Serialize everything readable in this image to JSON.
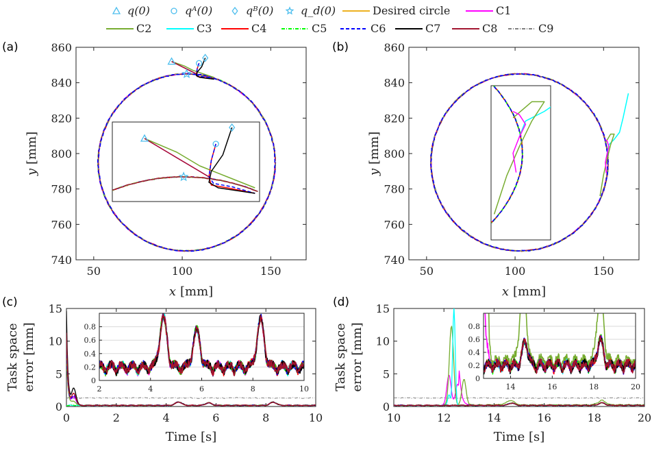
{
  "legend": {
    "items": [
      {
        "key": "q0",
        "label": "q(0)",
        "kind": "marker",
        "marker": "triangle",
        "color": "#4DBEEE"
      },
      {
        "key": "qA0",
        "label": "qᴬ(0)",
        "kind": "marker",
        "marker": "circle",
        "color": "#4DBEEE"
      },
      {
        "key": "qB0",
        "label": "qᴮ(0)",
        "kind": "marker",
        "marker": "diamond",
        "color": "#4DBEEE"
      },
      {
        "key": "qd0",
        "label": "q_d(0)",
        "kind": "marker",
        "marker": "star",
        "color": "#4DBEEE"
      },
      {
        "key": "desired",
        "label": "Desired circle",
        "kind": "line",
        "color": "#EDB120",
        "dash": "solid"
      },
      {
        "key": "C1",
        "label": "C1",
        "kind": "line",
        "color": "#FF00FF",
        "dash": "solid"
      },
      {
        "key": "C2",
        "label": "C2",
        "kind": "line",
        "color": "#77AC30",
        "dash": "solid"
      },
      {
        "key": "C3",
        "label": "C3",
        "kind": "line",
        "color": "#00FFFF",
        "dash": "solid"
      },
      {
        "key": "C4",
        "label": "C4",
        "kind": "line",
        "color": "#FF0000",
        "dash": "solid"
      },
      {
        "key": "C5",
        "label": "C5",
        "kind": "line",
        "color": "#00FF00",
        "dash": "dashdot"
      },
      {
        "key": "C6",
        "label": "C6",
        "kind": "line",
        "color": "#0000FF",
        "dash": "dashed"
      },
      {
        "key": "C7",
        "label": "C7",
        "kind": "line",
        "color": "#000000",
        "dash": "solid"
      },
      {
        "key": "C8",
        "label": "C8",
        "kind": "line",
        "color": "#A2142F",
        "dash": "solid"
      },
      {
        "key": "C9",
        "label": "C9",
        "kind": "line",
        "color": "#808080",
        "dash": "dashdot"
      }
    ]
  },
  "chart_data": [
    {
      "panel": "(a)",
      "type": "line",
      "xlabel": "x [mm]",
      "ylabel": "y [mm]",
      "xlim": [
        40,
        170
      ],
      "ylim": [
        740,
        860
      ],
      "xticks": [
        50,
        100,
        150
      ],
      "yticks": [
        740,
        760,
        780,
        800,
        820,
        840,
        860
      ],
      "desired_circle": {
        "center": [
          102.5,
          795
        ],
        "radius": 50
      },
      "markers": {
        "q0": [
          94,
          852
        ],
        "qA0": [
          109.5,
          851
        ],
        "qB0": [
          113,
          854
        ],
        "qd0": [
          102.5,
          845
        ]
      },
      "approach_paths": [
        {
          "series": "C1",
          "points": [
            [
              94,
              852
            ],
            [
              100,
              849
            ],
            [
              106,
              846
            ],
            [
              108,
              845
            ]
          ]
        },
        {
          "series": "C2",
          "points": [
            [
              94,
              852
            ],
            [
              101,
              849.5
            ],
            [
              106,
              847
            ],
            [
              112,
              845
            ],
            [
              118,
              843
            ]
          ]
        },
        {
          "series": "C8",
          "points": [
            [
              94,
              852
            ],
            [
              100,
              849
            ],
            [
              106,
              846
            ],
            [
              108,
              845
            ]
          ]
        },
        {
          "series": "C4",
          "points": [
            [
              109.5,
              851
            ],
            [
              108.5,
              848
            ],
            [
              108,
              845
            ],
            [
              108.5,
              843.5
            ],
            [
              112,
              843
            ],
            [
              118,
              842
            ]
          ]
        },
        {
          "series": "C6",
          "points": [
            [
              109.5,
              851
            ],
            [
              108.5,
              848
            ],
            [
              108,
              845
            ],
            [
              109,
              843.8
            ],
            [
              113,
              843.2
            ],
            [
              118,
              842
            ]
          ]
        },
        {
          "series": "C7",
          "points": [
            [
              113,
              854
            ],
            [
              111,
              849
            ],
            [
              108.5,
              846
            ],
            [
              108,
              844
            ],
            [
              110,
              843
            ],
            [
              114,
              842.5
            ],
            [
              118,
              842
            ]
          ]
        }
      ],
      "inset": {
        "xlim": [
          87,
          119
        ],
        "ylim": [
          840.5,
          855
        ],
        "xticks": [],
        "yticks": []
      }
    },
    {
      "panel": "(b)",
      "type": "line",
      "xlabel": "x [mm]",
      "ylabel": "y [mm]",
      "xlim": [
        40,
        170
      ],
      "ylim": [
        740,
        860
      ],
      "xticks": [
        50,
        100,
        150
      ],
      "yticks": [
        740,
        760,
        780,
        800,
        820,
        840,
        860
      ],
      "desired_circle": {
        "center": [
          102.5,
          795
        ],
        "radius": 50
      },
      "disturbance_paths": [
        {
          "series": "C3",
          "points": [
            [
              152,
              800
            ],
            [
              153,
              805
            ],
            [
              156,
              808
            ],
            [
              159,
              812
            ],
            [
              161,
              820
            ],
            [
              164,
              834
            ]
          ]
        },
        {
          "series": "C2",
          "points": [
            [
              148,
              776
            ],
            [
              150,
              788
            ],
            [
              152,
              797
            ],
            [
              154,
              805
            ],
            [
              156,
              811
            ],
            [
              154,
              811
            ],
            [
              151,
              806
            ]
          ]
        },
        {
          "series": "C1",
          "points": [
            [
              151.5,
              789
            ],
            [
              151,
              795
            ],
            [
              152,
              800
            ],
            [
              153,
              804
            ],
            [
              152,
              807
            ],
            [
              151,
              808
            ]
          ]
        }
      ],
      "inset": {
        "xlim": [
          147.5,
          157
        ],
        "ylim": [
          768,
          816
        ],
        "xticks": [],
        "yticks": []
      }
    },
    {
      "panel": "(c)",
      "type": "line",
      "xlabel": "Time [s]",
      "ylabel": "Task space error [mm]",
      "xlim": [
        0,
        10
      ],
      "ylim": [
        0,
        15
      ],
      "xticks": [
        0,
        2,
        4,
        6,
        8,
        10
      ],
      "yticks": [
        0,
        5,
        10,
        15
      ],
      "series_peaks": [
        {
          "name": "C7",
          "initial": 14.5,
          "bump_at": 0.3,
          "bump": 2.6
        },
        {
          "name": "C8",
          "initial": 11.2,
          "bump_at": 0.3,
          "bump": 1.8
        },
        {
          "name": "C4",
          "initial": 11.0,
          "bump_at": 0.3,
          "bump": 1.8
        },
        {
          "name": "C6",
          "initial": 9.5,
          "bump_at": 0.3,
          "bump": 1.5
        },
        {
          "name": "C1",
          "initial": 9.0,
          "bump_at": 0.3,
          "bump": 1.3
        },
        {
          "name": "C2",
          "initial": 8.0,
          "bump_at": 0.3,
          "bump": 0.6
        },
        {
          "name": "C9",
          "steady": 1.3
        }
      ],
      "steady_state_peaks": [
        {
          "t": 4.5,
          "value": 0.75
        },
        {
          "t": 5.7,
          "value": 0.55
        },
        {
          "t": 8.3,
          "value": 0.7
        }
      ],
      "inset": {
        "xlim": [
          2,
          10
        ],
        "ylim": [
          0,
          1
        ],
        "xticks": [
          2,
          4,
          6,
          8,
          10
        ],
        "yticks": [
          0,
          0.2,
          0.4,
          0.6,
          0.8
        ],
        "peaks": [
          {
            "t": 4.5,
            "value": 0.88,
            "series": "C2"
          },
          {
            "t": 5.8,
            "value": 0.68,
            "series": "C2"
          },
          {
            "t": 8.3,
            "value": 0.84,
            "series": "C2"
          }
        ]
      }
    },
    {
      "panel": "(d)",
      "type": "line",
      "xlabel": "Time [s]",
      "ylabel": "Task space error [mm]",
      "xlim": [
        10,
        20
      ],
      "ylim": [
        0,
        15
      ],
      "xticks": [
        10,
        12,
        14,
        16,
        18,
        20
      ],
      "yticks": [
        0,
        5,
        10,
        15
      ],
      "disturbance_peaks": [
        {
          "name": "C3",
          "t": 12.4,
          "value": 15.0
        },
        {
          "name": "C2",
          "t": 12.3,
          "value": 12.2
        },
        {
          "name": "C2",
          "t": 12.8,
          "value": 4.0
        },
        {
          "name": "C1",
          "t": 12.2,
          "value": 4.7
        },
        {
          "name": "C1",
          "t": 12.55,
          "value": 3.3
        },
        {
          "name": "C3",
          "t": 12.2,
          "value": 1.7
        },
        {
          "name": "C9",
          "steady": 1.3
        }
      ],
      "inset": {
        "xlim": [
          12.7,
          20
        ],
        "ylim": [
          0,
          1
        ],
        "xticks": [
          14,
          16,
          18,
          20
        ],
        "yticks": [
          0,
          0.2,
          0.4,
          0.6,
          0.8
        ],
        "peaks": [
          {
            "t": 14.6,
            "value": 0.95,
            "series": "C2"
          },
          {
            "t": 14.7,
            "value": 0.5,
            "series": "C6"
          },
          {
            "t": 18.3,
            "value": 0.9,
            "series": "C2"
          },
          {
            "t": 18.3,
            "value": 0.55,
            "series": "C6"
          }
        ]
      }
    }
  ],
  "panel_labels": [
    "(a)",
    "(b)",
    "(c)",
    "(d)"
  ],
  "axis_text": {
    "x_mm": "x",
    "mm_unit": "[mm]",
    "y_mm": "y",
    "time": "Time [s]",
    "err_line1": "Task space",
    "err_line2": "error [mm]"
  }
}
